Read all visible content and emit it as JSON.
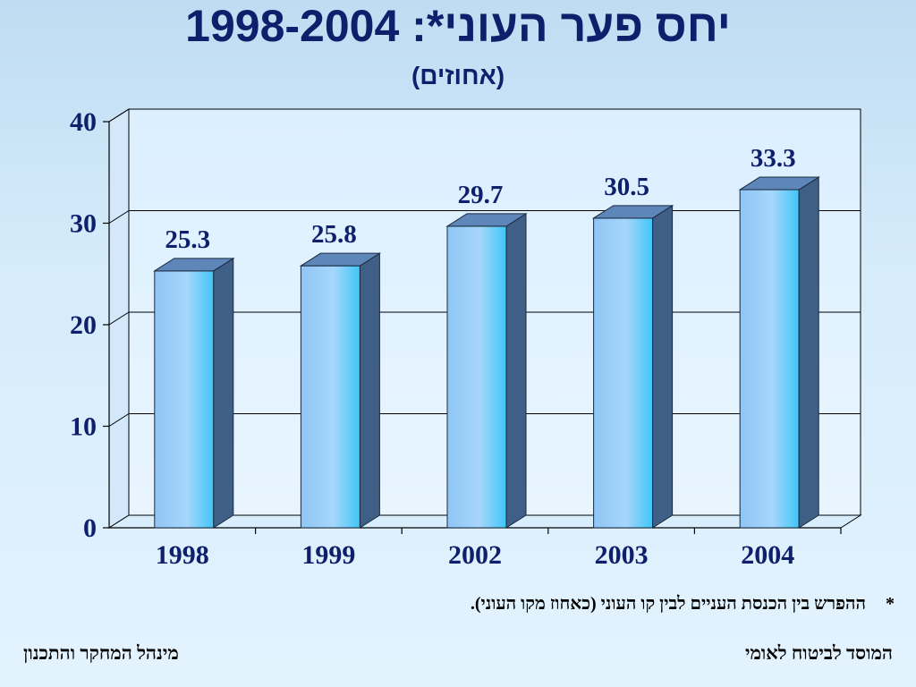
{
  "title": "יחס פער העוני*: 1998-2004",
  "subtitle": "(אחוזים)",
  "chart_data": {
    "type": "bar",
    "categories": [
      "1998",
      "1999",
      "2002",
      "2003",
      "2004"
    ],
    "values": [
      25.3,
      25.8,
      29.7,
      30.5,
      33.3
    ],
    "value_labels": [
      "25.3",
      "25.8",
      "29.7",
      "30.5",
      "33.3"
    ],
    "ylim": [
      0,
      40
    ],
    "yticks": [
      "0",
      "10",
      "20",
      "30",
      "40"
    ],
    "grid": true,
    "style": "3d-columns",
    "bar_color": "#8fc6f5",
    "bar_side_color": "#3f5f86",
    "xlabel": "",
    "ylabel": ""
  },
  "footnote": {
    "marker": "*",
    "text": "ההפרש בין הכנסת העניים לבין קו העוני (כאחוז מקו העוני)."
  },
  "footer": {
    "right": "המוסד לביטוח לאומי",
    "left": "מינהל המחקר והתכנון"
  }
}
